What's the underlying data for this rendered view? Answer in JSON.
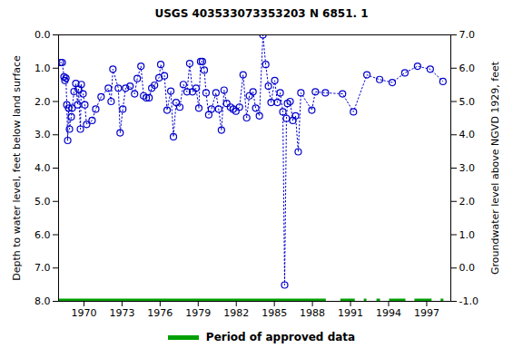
{
  "chart_data": {
    "type": "line",
    "title": "USGS 403533073353203 N  6851. 1",
    "y_label": "Depth to water level, feet below land surface",
    "y2_label": "Groundwater level above NGVD 1929, feet",
    "xlim": [
      1968.0,
      1998.9
    ],
    "xticks": [
      1970,
      1973,
      1976,
      1979,
      1982,
      1985,
      1988,
      1991,
      1994,
      1997
    ],
    "ylim": [
      8.0,
      0.0
    ],
    "yticks": [
      {
        "value": 0,
        "label": "0.0"
      },
      {
        "value": 1,
        "label": "1.0"
      },
      {
        "value": 2,
        "label": "2.0"
      },
      {
        "value": 3,
        "label": "3.0"
      },
      {
        "value": 4,
        "label": "4.0"
      },
      {
        "value": 5,
        "label": "5.0"
      },
      {
        "value": 6,
        "label": "6.0"
      },
      {
        "value": 7,
        "label": "7.0"
      },
      {
        "value": 8,
        "label": "8.0"
      }
    ],
    "y2lim": [
      -1.0,
      7.0
    ],
    "y2ticks": [
      {
        "value": 7,
        "label": "7.0"
      },
      {
        "value": 6,
        "label": "6.0"
      },
      {
        "value": 5,
        "label": "5.0"
      },
      {
        "value": 4,
        "label": "4.0"
      },
      {
        "value": 3,
        "label": "3.0"
      },
      {
        "value": 2,
        "label": "2.0"
      },
      {
        "value": 1,
        "label": "1.0"
      },
      {
        "value": 0,
        "label": "0.0"
      },
      {
        "value": -1,
        "label": "-1.0"
      }
    ],
    "grid": false,
    "series": [
      {
        "color": "#0000cc",
        "marker": "open_circle",
        "line_style": "dotted",
        "x": [
          1968.15,
          1968.29,
          1968.43,
          1968.5,
          1968.58,
          1968.65,
          1968.72,
          1968.79,
          1968.86,
          1969.0,
          1969.07,
          1969.22,
          1969.36,
          1969.5,
          1969.57,
          1969.72,
          1969.79,
          1969.93,
          1970.07,
          1970.21,
          1970.64,
          1970.93,
          1971.35,
          1971.92,
          1972.14,
          1972.28,
          1972.71,
          1972.85,
          1973.06,
          1973.28,
          1973.63,
          1973.99,
          1974.2,
          1974.49,
          1974.7,
          1974.91,
          1975.13,
          1975.34,
          1975.56,
          1975.91,
          1976.05,
          1976.34,
          1976.55,
          1976.84,
          1977.05,
          1977.26,
          1977.55,
          1977.83,
          1978.12,
          1978.33,
          1978.55,
          1978.83,
          1979.05,
          1979.19,
          1979.33,
          1979.48,
          1979.62,
          1979.83,
          1980.04,
          1980.4,
          1980.61,
          1980.83,
          1981.04,
          1981.25,
          1981.54,
          1981.75,
          1981.97,
          1982.25,
          1982.54,
          1982.82,
          1983.03,
          1983.32,
          1983.53,
          1983.82,
          1984.1,
          1984.32,
          1984.53,
          1984.74,
          1985.03,
          1985.24,
          1985.46,
          1985.67,
          1985.81,
          1985.95,
          1986.03,
          1986.24,
          1986.45,
          1986.67,
          1986.88,
          1987.09,
          1987.95,
          1988.23,
          1989.02,
          1990.37,
          1991.23,
          1992.29,
          1993.29,
          1994.29,
          1995.28,
          1996.28,
          1997.28,
          1998.28
        ],
        "values": [
          0.83,
          0.83,
          1.26,
          1.37,
          1.3,
          2.1,
          3.17,
          2.2,
          2.83,
          2.46,
          2.2,
          1.7,
          1.46,
          2.1,
          1.63,
          2.83,
          1.49,
          1.77,
          2.1,
          2.69,
          2.57,
          2.23,
          1.86,
          1.6,
          2.0,
          1.03,
          1.6,
          2.94,
          2.23,
          1.6,
          1.54,
          1.77,
          1.31,
          0.94,
          1.83,
          1.89,
          1.89,
          1.6,
          1.51,
          1.29,
          0.89,
          1.23,
          2.26,
          1.69,
          3.06,
          2.03,
          2.17,
          1.49,
          1.71,
          0.86,
          1.71,
          1.6,
          2.2,
          0.8,
          0.8,
          1.06,
          1.74,
          2.4,
          2.23,
          1.74,
          2.23,
          2.86,
          1.66,
          2.06,
          2.17,
          2.23,
          2.29,
          2.17,
          1.2,
          2.49,
          1.83,
          1.71,
          2.2,
          2.43,
          0.0,
          0.89,
          1.54,
          2.03,
          1.37,
          2.03,
          1.74,
          2.31,
          7.51,
          2.51,
          2.06,
          2.0,
          2.57,
          2.43,
          3.51,
          1.74,
          2.26,
          1.71,
          1.74,
          1.77,
          2.31,
          1.2,
          1.34,
          1.43,
          1.14,
          0.94,
          1.03,
          1.4
        ]
      }
    ],
    "approved_data": {
      "label": "Period of approved data",
      "color": "#00a000",
      "periods": [
        [
          1968.0,
          1989.09
        ],
        [
          1990.23,
          1991.37
        ],
        [
          1992.08,
          1992.29
        ],
        [
          1993.08,
          1993.36
        ],
        [
          1994.07,
          1995.36
        ],
        [
          1996.07,
          1997.42
        ],
        [
          1998.13,
          1998.35
        ]
      ]
    }
  }
}
